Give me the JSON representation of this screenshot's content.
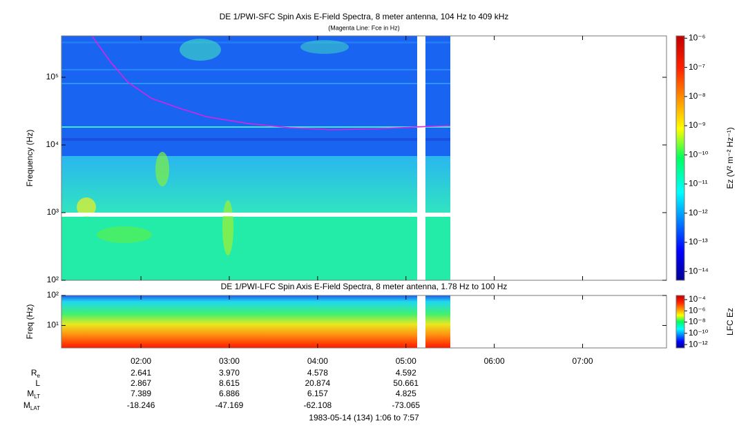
{
  "chart_data": [
    {
      "type": "spectrogram",
      "title": "DE 1/PWI-SFC  Spin Axis E-Field Spectra, 8 meter antenna, 104 Hz to 409 kHz",
      "subtitle": "(Magenta Line: Fce in Hz)",
      "y_label": "Frequency (Hz)",
      "y_log": true,
      "ylim": [
        100,
        409000
      ],
      "yticks": [
        {
          "value": 100,
          "label": "10²"
        },
        {
          "value": 1000,
          "label": "10³"
        },
        {
          "value": 10000,
          "label": "10⁴"
        },
        {
          "value": 100000,
          "label": "10⁵"
        }
      ],
      "xlim": [
        "01:06",
        "07:57"
      ],
      "x": [
        "01:27",
        "01:39",
        "01:51",
        "02:07",
        "02:26",
        "02:45",
        "03:13",
        "03:41",
        "04:09",
        "04:37",
        "05:06",
        "05:30"
      ],
      "series": [
        {
          "color": "#e020e0",
          "values": [
            400000,
            172000,
            85000,
            49000,
            35000,
            26000,
            20700,
            18000,
            16800,
            17200,
            18400,
            19300
          ]
        }
      ],
      "colorbar": {
        "label": "Ez (V² m⁻² Hz⁻¹)",
        "log": true,
        "lim": [
          5e-15,
          1.2e-06
        ],
        "ticks": [
          {
            "value": 1e-06,
            "label": "10⁻⁶"
          },
          {
            "value": 1e-07,
            "label": "10⁻⁷"
          },
          {
            "value": 1e-08,
            "label": "10⁻⁸"
          },
          {
            "value": 1e-09,
            "label": "10⁻⁹"
          },
          {
            "value": 1e-10,
            "label": "10⁻¹⁰"
          },
          {
            "value": 1e-11,
            "label": "10⁻¹¹"
          },
          {
            "value": 1e-12,
            "label": "10⁻¹²"
          },
          {
            "value": 1e-13,
            "label": "10⁻¹³"
          },
          {
            "value": 1e-14,
            "label": "10⁻¹⁴"
          }
        ]
      }
    },
    {
      "type": "spectrogram",
      "title": "DE 1/PWI-LFC  Spin Axis E-Field Spectra, 8 meter antenna, 1.78 Hz to 100 Hz",
      "y_label": "Freq (Hz)",
      "y_log": true,
      "ylim": [
        1.78,
        100
      ],
      "yticks": [
        {
          "value": 10,
          "label": "10¹"
        },
        {
          "value": 100,
          "label": "10²"
        }
      ],
      "xlim": [
        "01:06",
        "07:57"
      ],
      "xticks": [
        "02:00",
        "03:00",
        "04:00",
        "05:00",
        "06:00",
        "07:00"
      ],
      "colorbar": {
        "label": "LFC Ez",
        "log": true,
        "lim": [
          2.5e-13,
          0.00055
        ],
        "ticks": [
          {
            "value": 0.0001,
            "label": "10⁻⁴"
          },
          {
            "value": 1e-06,
            "label": "10⁻⁶"
          },
          {
            "value": 1e-08,
            "label": "10⁻⁸"
          },
          {
            "value": 1e-10,
            "label": "10⁻¹⁰"
          },
          {
            "value": 1e-12,
            "label": "10⁻¹²"
          }
        ]
      }
    }
  ],
  "ephemeris": {
    "rows": [
      {
        "label": "R",
        "sub": "e",
        "values": [
          "2.641",
          "3.970",
          "4.578",
          "4.592"
        ]
      },
      {
        "label": "L",
        "values": [
          "2.867",
          "8.615",
          "20.874",
          "50.661"
        ]
      },
      {
        "label": "M",
        "sub": "LT",
        "values": [
          "7.389",
          "6.886",
          "6.157",
          "4.825"
        ]
      },
      {
        "label": "M",
        "sub": "LAT",
        "values": [
          "-18.246",
          "-47.169",
          "-62.108",
          "-73.065"
        ]
      }
    ],
    "footer": "1983-05-14 (134) 1:06 to 7:57"
  }
}
